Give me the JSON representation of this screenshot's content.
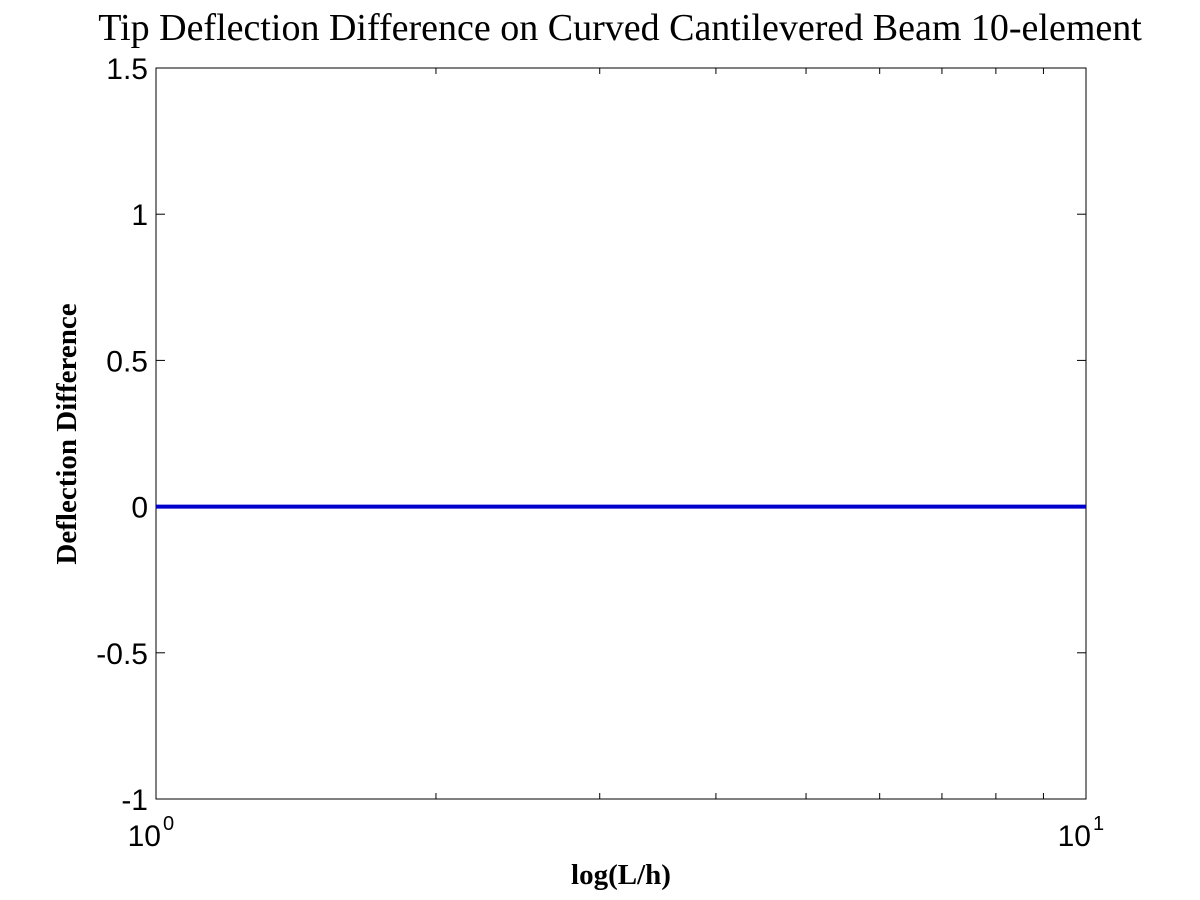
{
  "chart_data": {
    "type": "line",
    "title": "Tip Deflection Difference on Curved Cantilevered Beam 10-element",
    "xlabel": "log(L/h)",
    "ylabel": "Deflection Difference",
    "xscale": "log",
    "xlim": [
      1,
      10
    ],
    "ylim": [
      -1,
      1.5
    ],
    "x_ticks": [
      {
        "base": "10",
        "exp": "0",
        "value": 1
      },
      {
        "base": "10",
        "exp": "1",
        "value": 10
      }
    ],
    "y_ticks": [
      {
        "label": "1.5",
        "value": 1.5
      },
      {
        "label": "1",
        "value": 1
      },
      {
        "label": "0.5",
        "value": 0.5
      },
      {
        "label": "0",
        "value": 0
      },
      {
        "label": "-0.5",
        "value": -0.5
      },
      {
        "label": "-1",
        "value": -1
      }
    ],
    "minor_x_ticks": [
      2,
      3,
      4,
      5,
      6,
      7,
      8,
      9
    ],
    "grid": false,
    "legend": "none",
    "series": [
      {
        "color": "#0000cc",
        "x": [
          1,
          2,
          3,
          4,
          5,
          6,
          7,
          8,
          9,
          10
        ],
        "y": [
          0,
          0,
          0,
          0,
          0,
          0,
          0,
          0,
          0,
          0
        ]
      }
    ]
  }
}
